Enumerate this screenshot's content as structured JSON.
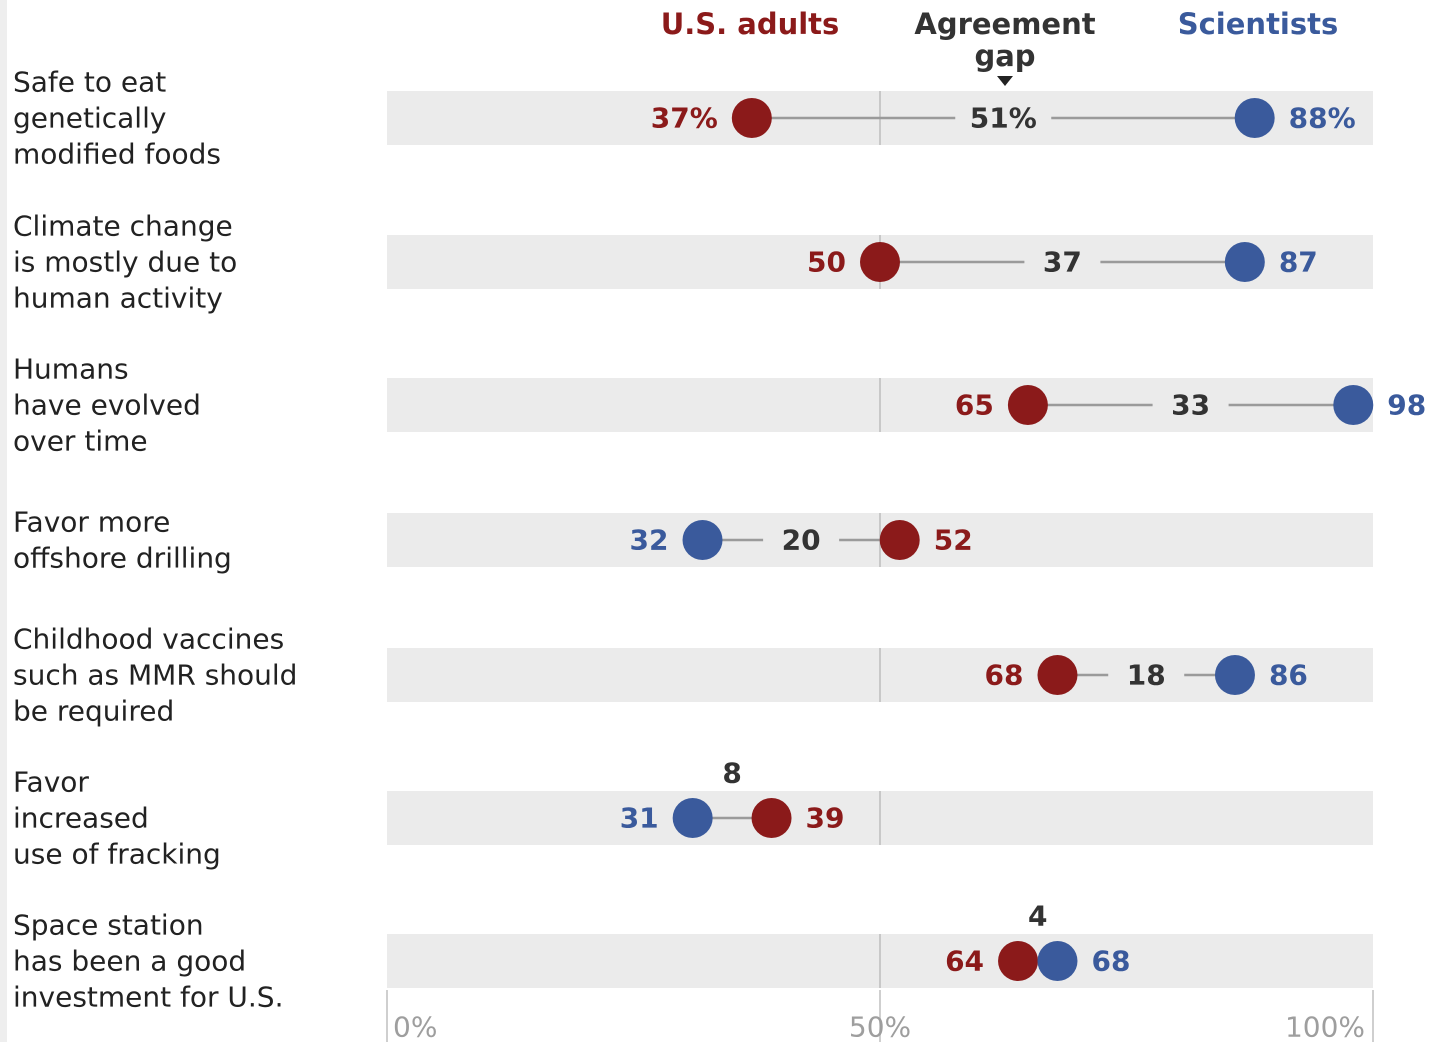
{
  "chart_data": {
    "type": "dot",
    "legend": {
      "series_a": "U.S. adults",
      "gap_line1": "Agreement",
      "gap_line2": "gap",
      "series_b": "Scientists"
    },
    "colors": {
      "us_adults": "#8b1a1a",
      "scientists": "#3a5a9c",
      "gap_text": "#333333",
      "band": "#ebebeb",
      "connector": "#9a9a9a",
      "axis_text": "#9e9e9e"
    },
    "x_ticks": [
      {
        "value": 0,
        "label": "0%"
      },
      {
        "value": 50,
        "label": "50%"
      },
      {
        "value": 100,
        "label": "100%"
      }
    ],
    "xlim": [
      0,
      100
    ],
    "items": [
      {
        "label": [
          "Safe to eat",
          "genetically",
          "modified foods"
        ],
        "us_adults": 37,
        "scientists": 88,
        "gap": 51,
        "us_label": "37%",
        "sci_label": "88%",
        "gap_label": "51%"
      },
      {
        "label": [
          "Climate change",
          "is mostly due to",
          "human activity"
        ],
        "us_adults": 50,
        "scientists": 87,
        "gap": 37,
        "us_label": "50",
        "sci_label": "87",
        "gap_label": "37"
      },
      {
        "label": [
          "Humans",
          "have evolved",
          "over time"
        ],
        "us_adults": 65,
        "scientists": 98,
        "gap": 33,
        "us_label": "65",
        "sci_label": "98",
        "gap_label": "33"
      },
      {
        "label": [
          "Favor more",
          "offshore drilling"
        ],
        "us_adults": 52,
        "scientists": 32,
        "gap": 20,
        "us_label": "52",
        "sci_label": "32",
        "gap_label": "20"
      },
      {
        "label": [
          "Childhood vaccines",
          "such as MMR should",
          "be required"
        ],
        "us_adults": 68,
        "scientists": 86,
        "gap": 18,
        "us_label": "68",
        "sci_label": "86",
        "gap_label": "18"
      },
      {
        "label": [
          "Favor",
          "increased",
          "use of fracking"
        ],
        "us_adults": 39,
        "scientists": 31,
        "gap": 8,
        "us_label": "39",
        "sci_label": "31",
        "gap_label": "8"
      },
      {
        "label": [
          "Space station",
          "has been a good",
          "investment for U.S."
        ],
        "us_adults": 64,
        "scientists": 68,
        "gap": 4,
        "us_label": "64",
        "sci_label": "68",
        "gap_label": "4"
      }
    ]
  }
}
